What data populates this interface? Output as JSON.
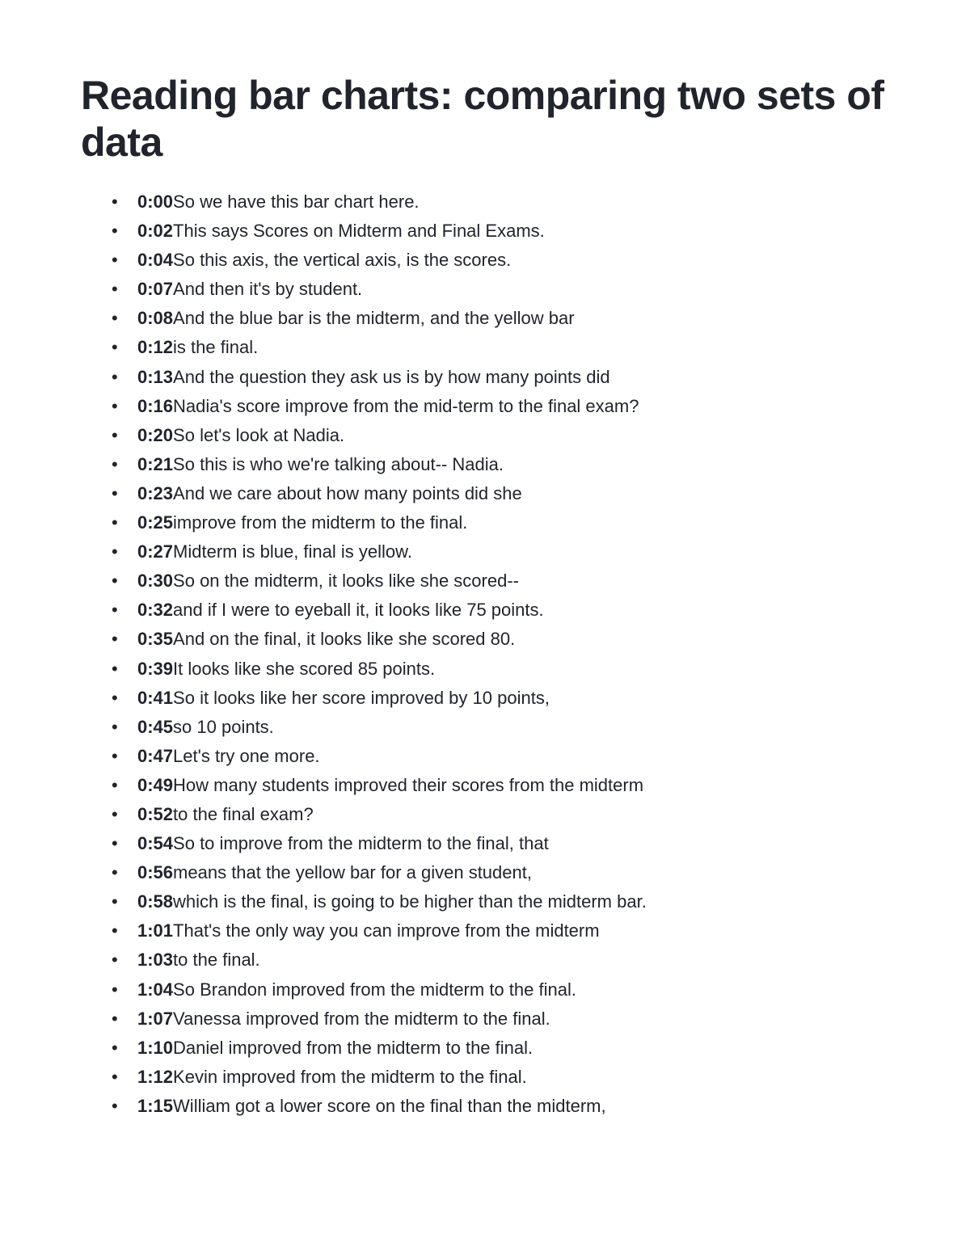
{
  "title": "Reading bar charts: comparing two sets of data",
  "text_color": "#21242c",
  "background_color": "#ffffff",
  "title_fontsize": 50,
  "body_fontsize": 22,
  "transcript": [
    {
      "time": "0:00",
      "text": "So we have this bar chart here."
    },
    {
      "time": "0:02",
      "text": "This says Scores on Midterm and Final Exams."
    },
    {
      "time": "0:04",
      "text": "So this axis, the vertical axis, is the scores."
    },
    {
      "time": "0:07",
      "text": "And then it's by student."
    },
    {
      "time": "0:08",
      "text": "And the blue bar is the midterm, and the yellow bar"
    },
    {
      "time": "0:12",
      "text": "is the final."
    },
    {
      "time": "0:13",
      "text": "And the question they ask us is by how many points did"
    },
    {
      "time": "0:16",
      "text": "Nadia's score improve from the mid-term to the final exam?"
    },
    {
      "time": "0:20",
      "text": "So let's look at Nadia."
    },
    {
      "time": "0:21",
      "text": "So this is who we're talking about-- Nadia."
    },
    {
      "time": "0:23",
      "text": "And we care about how many points did she"
    },
    {
      "time": "0:25",
      "text": "improve from the midterm to the final."
    },
    {
      "time": "0:27",
      "text": "Midterm is blue, final is yellow."
    },
    {
      "time": "0:30",
      "text": "So on the midterm, it looks like she scored--"
    },
    {
      "time": "0:32",
      "text": "and if I were to eyeball it, it looks like 75 points."
    },
    {
      "time": "0:35",
      "text": "And on the final, it looks like she scored 80."
    },
    {
      "time": "0:39",
      "text": "It looks like she scored 85 points."
    },
    {
      "time": "0:41",
      "text": "So it looks like her score improved by 10 points,"
    },
    {
      "time": "0:45",
      "text": "so 10 points."
    },
    {
      "time": "0:47",
      "text": "Let's try one more."
    },
    {
      "time": "0:49",
      "text": "How many students improved their scores from the midterm"
    },
    {
      "time": "0:52",
      "text": "to the final exam?"
    },
    {
      "time": "0:54",
      "text": "So to improve from the midterm to the final, that"
    },
    {
      "time": "0:56",
      "text": "means that the yellow bar for a given student,"
    },
    {
      "time": "0:58",
      "text": "which is the final, is going to be higher than the midterm bar."
    },
    {
      "time": "1:01",
      "text": "That's the only way you can improve from the midterm"
    },
    {
      "time": "1:03",
      "text": "to the final."
    },
    {
      "time": "1:04",
      "text": "So Brandon improved from the midterm to the final."
    },
    {
      "time": "1:07",
      "text": "Vanessa improved from the midterm to the final."
    },
    {
      "time": "1:10",
      "text": "Daniel improved from the midterm to the final."
    },
    {
      "time": "1:12",
      "text": "Kevin improved from the midterm to the final."
    },
    {
      "time": "1:15",
      "text": "William got a lower score on the final than the midterm,"
    }
  ]
}
